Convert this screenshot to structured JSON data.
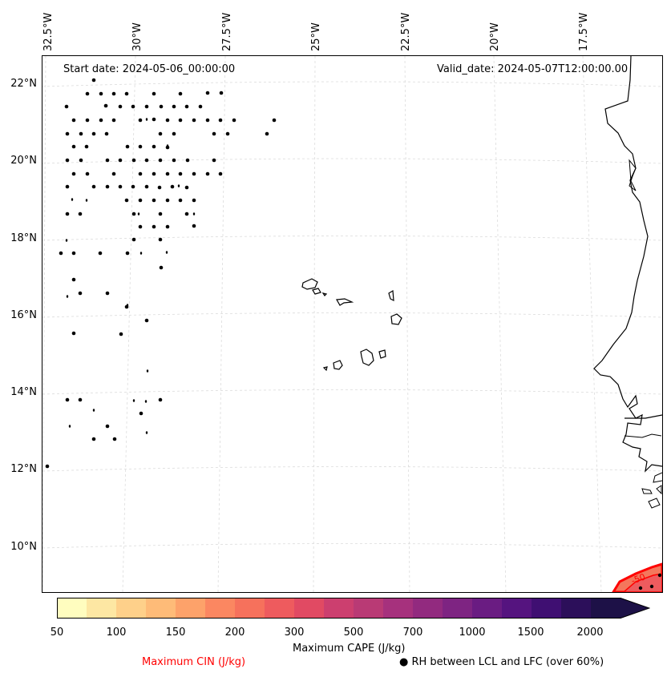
{
  "header": {
    "start_date": "Start date: 2024-05-06_00:00:00",
    "valid_date": "Valid_date: 2024-05-07T12:00:00.00"
  },
  "map": {
    "lon_labels": [
      "32.5°W",
      "30°W",
      "27.5°W",
      "25°W",
      "22.5°W",
      "20°W",
      "17.5°W"
    ],
    "lat_labels": [
      "22°N",
      "20°N",
      "18°N",
      "16°N",
      "14°N",
      "12°N",
      "10°N"
    ],
    "contour_label": "-50",
    "cin_color": "#ff0000"
  },
  "colorbar": {
    "title": "Maximum CAPE (J/kg)",
    "tick_labels": [
      "50",
      "100",
      "150",
      "200",
      "300",
      "500",
      "700",
      "1000",
      "1500",
      "2000"
    ],
    "colors": [
      "#fffdbf",
      "#fde7a3",
      "#fed08a",
      "#febb78",
      "#fda26a",
      "#fb8761",
      "#f6715c",
      "#ee5b5e",
      "#e14a63",
      "#cc3f6f",
      "#b93a75",
      "#a6317d",
      "#922a7f",
      "#7e2482",
      "#6a1c82",
      "#55147f",
      "#3f0f72",
      "#2c0f5a",
      "#1d1147"
    ]
  },
  "legend": {
    "cin_label": "Maximum CIN (J/kg)",
    "rh_label": "● RH between LCL and LFC (over 60%)"
  }
}
